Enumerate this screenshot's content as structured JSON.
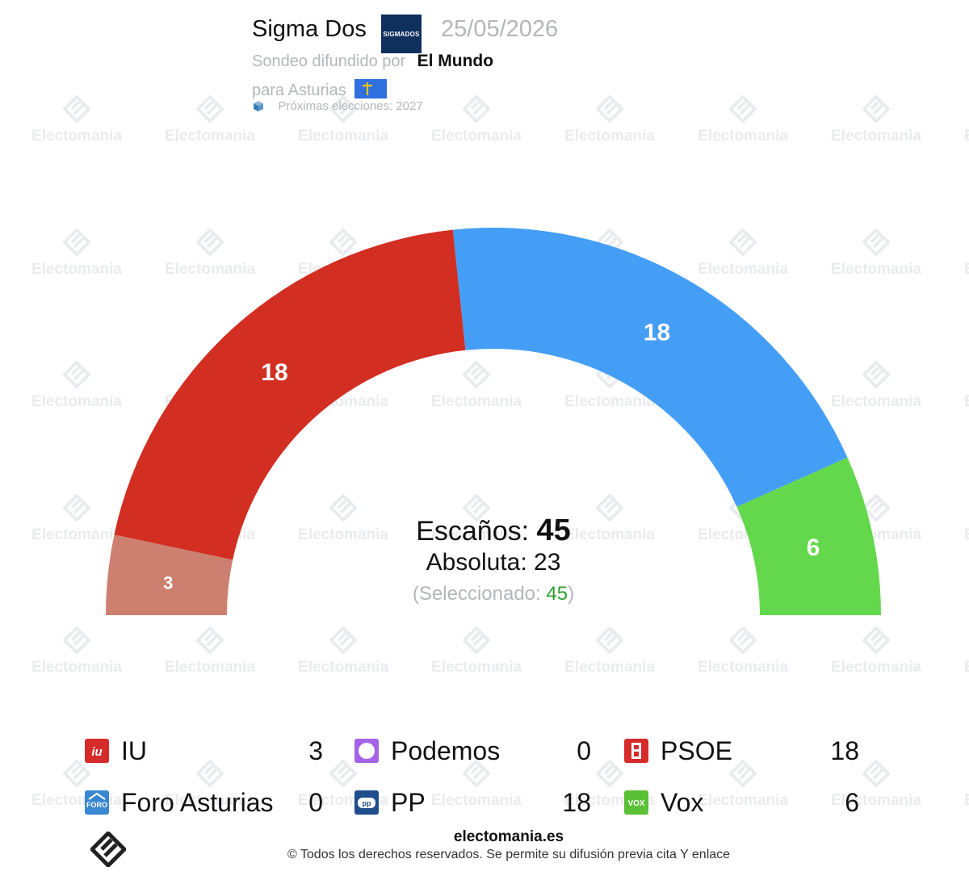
{
  "header": {
    "pollster": "Sigma Dos",
    "pollster_logo_text": "SIGMADOS",
    "date": "25/05/2026",
    "source_prefix": "Sondeo difundido por",
    "media": "El Mundo",
    "region": "para Asturias",
    "next_elections": "Próximas elecciones: 2027"
  },
  "watermark_text": "Electomania",
  "center": {
    "seats_label": "Escaños:",
    "seats_total": "45",
    "absolute_label": "Absoluta:",
    "absolute_value": "23",
    "selected_prefix": "(Seleccionado:",
    "selected_value": "45",
    "selected_suffix": ")"
  },
  "chart_data": {
    "type": "pie",
    "subtype": "hemicycle",
    "total_seats": 45,
    "majority": 23,
    "segments": [
      {
        "name": "IU",
        "seats": 3,
        "color": "#cd8070"
      },
      {
        "name": "PSOE",
        "seats": 18,
        "color": "#d22e22"
      },
      {
        "name": "PP",
        "seats": 18,
        "color": "#459ef5"
      },
      {
        "name": "Vox",
        "seats": 6,
        "color": "#63d84c"
      }
    ]
  },
  "legend": [
    {
      "name": "IU",
      "value": "3",
      "icon": "iu-logo-icon",
      "color": "#d52b2b"
    },
    {
      "name": "Podemos",
      "value": "0",
      "icon": "podemos-logo-icon",
      "color": "#a463e8"
    },
    {
      "name": "PSOE",
      "value": "18",
      "icon": "psoe-logo-icon",
      "color": "#d52b2b"
    },
    {
      "name": "Foro Asturias",
      "value": "0",
      "icon": "foro-asturias-logo-icon",
      "color": "#3a86d1"
    },
    {
      "name": "PP",
      "value": "18",
      "icon": "pp-logo-icon",
      "color": "#1f4e8c"
    },
    {
      "name": "Vox",
      "value": "6",
      "icon": "vox-logo-icon",
      "color": "#5ac035"
    }
  ],
  "footer": {
    "site": "electomania.es",
    "copyright": "© Todos los derechos reservados. Se permite su difusión previa cita Y enlace"
  }
}
